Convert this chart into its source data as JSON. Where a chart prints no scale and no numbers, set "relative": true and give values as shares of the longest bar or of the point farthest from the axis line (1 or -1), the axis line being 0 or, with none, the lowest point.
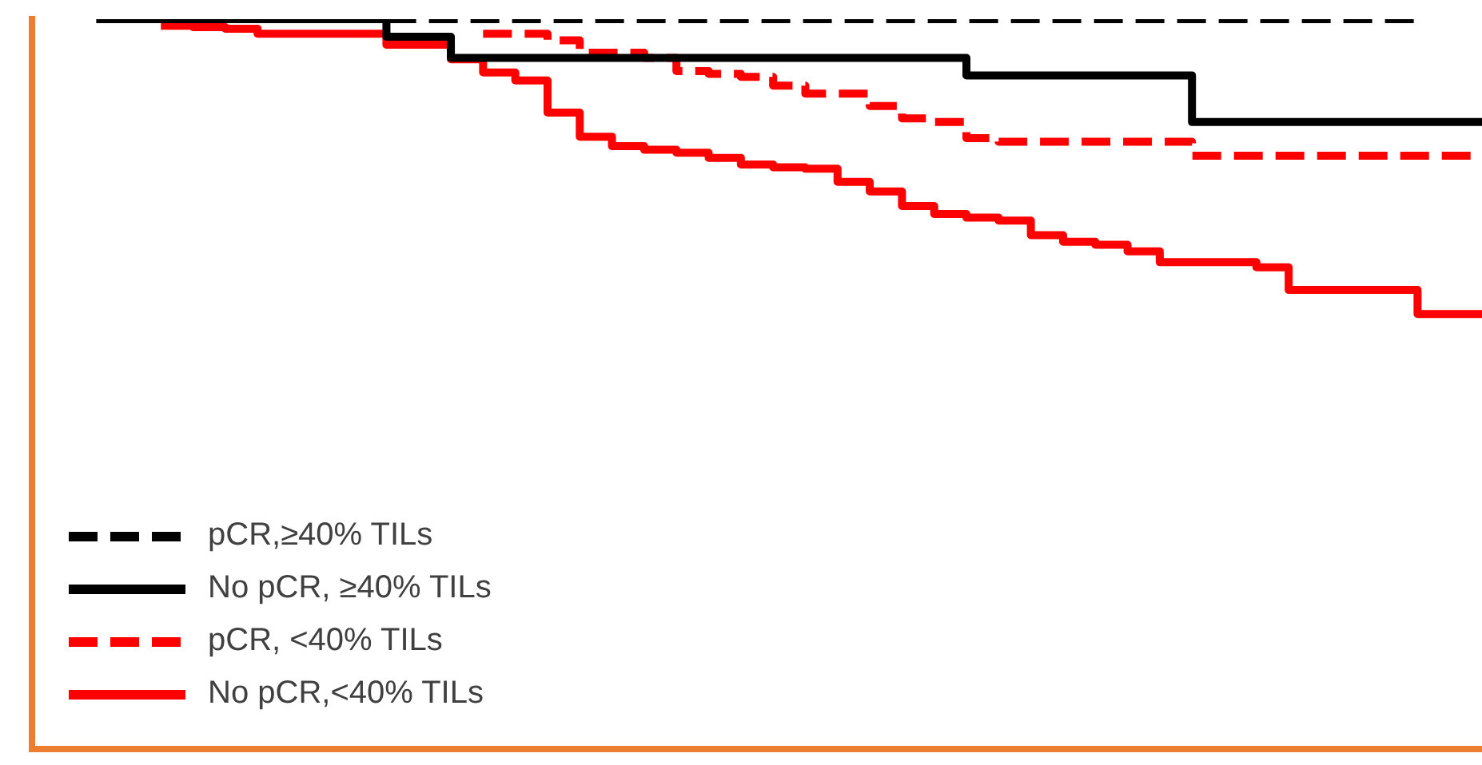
{
  "chart_data": {
    "type": "step",
    "relative": true,
    "legend": "bottom left",
    "grid": false,
    "categories": [
      null,
      null,
      null,
      null,
      null,
      null,
      null,
      null,
      null,
      null,
      null,
      null,
      null,
      null,
      null,
      null,
      null,
      null,
      null,
      null,
      null,
      null,
      null,
      null,
      null,
      null,
      null,
      null,
      null,
      null,
      null,
      null,
      null,
      null,
      null,
      null,
      null,
      null,
      null,
      null,
      null,
      null,
      null,
      null,
      null,
      null
    ],
    "series": [
      {
        "name": "pCR,≥40% TILs",
        "color": "#000000",
        "line_style": "dashed",
        "values": [
          null,
          null,
          1,
          1,
          1,
          1,
          1,
          1,
          1,
          1,
          1,
          1,
          1,
          1,
          1,
          1,
          1,
          1,
          1,
          1,
          1,
          1,
          1,
          1,
          1,
          1,
          1,
          1,
          1,
          1,
          1,
          1,
          1,
          1,
          1,
          1,
          1,
          1,
          1,
          1,
          1,
          1,
          1,
          1,
          null,
          null
        ]
      },
      {
        "name": "No pCR, ≥40% TILs",
        "color": "#000000",
        "line_style": "solid",
        "values": [
          null,
          null,
          1,
          1,
          1,
          1,
          1,
          1,
          1,
          1,
          1,
          0.976,
          0.976,
          0.947,
          0.947,
          0.947,
          0.947,
          0.947,
          0.947,
          0.947,
          0.947,
          0.947,
          0.947,
          0.947,
          0.947,
          0.947,
          0.947,
          0.947,
          0.947,
          0.923,
          0.923,
          0.923,
          0.923,
          0.923,
          0.923,
          0.923,
          0.859,
          0.859,
          0.859,
          0.859,
          0.859,
          0.859,
          0.859,
          0.859,
          0.859,
          0.859
        ]
      },
      {
        "name": "pCR, <40% TILs",
        "color": "#ff0000",
        "line_style": "dashed",
        "values": [
          null,
          null,
          null,
          null,
          null,
          null,
          null,
          null,
          null,
          null,
          null,
          null,
          null,
          null,
          0.98,
          0.98,
          0.971,
          0.954,
          0.954,
          0.947,
          0.929,
          0.925,
          0.921,
          0.909,
          0.898,
          0.898,
          0.881,
          0.864,
          0.859,
          0.837,
          0.832,
          0.832,
          0.832,
          0.832,
          0.832,
          0.832,
          0.813,
          0.813,
          0.813,
          0.813,
          0.813,
          0.813,
          0.813,
          0.813,
          0.813,
          0.813
        ]
      },
      {
        "name": "No pCR,<40% TILs",
        "color": "#ff0000",
        "line_style": "solid",
        "values": [
          null,
          null,
          null,
          null,
          0.991,
          0.989,
          0.987,
          0.98,
          0.98,
          0.98,
          0.98,
          0.965,
          0.965,
          0.945,
          0.927,
          0.916,
          0.872,
          0.839,
          0.826,
          0.821,
          0.817,
          0.81,
          0.801,
          0.797,
          0.795,
          0.777,
          0.764,
          0.744,
          0.733,
          0.728,
          0.724,
          0.704,
          0.695,
          0.691,
          0.682,
          0.667,
          0.667,
          0.667,
          0.66,
          0.629,
          0.629,
          0.629,
          0.629,
          0.596,
          0.596,
          0.596
        ]
      }
    ]
  }
}
